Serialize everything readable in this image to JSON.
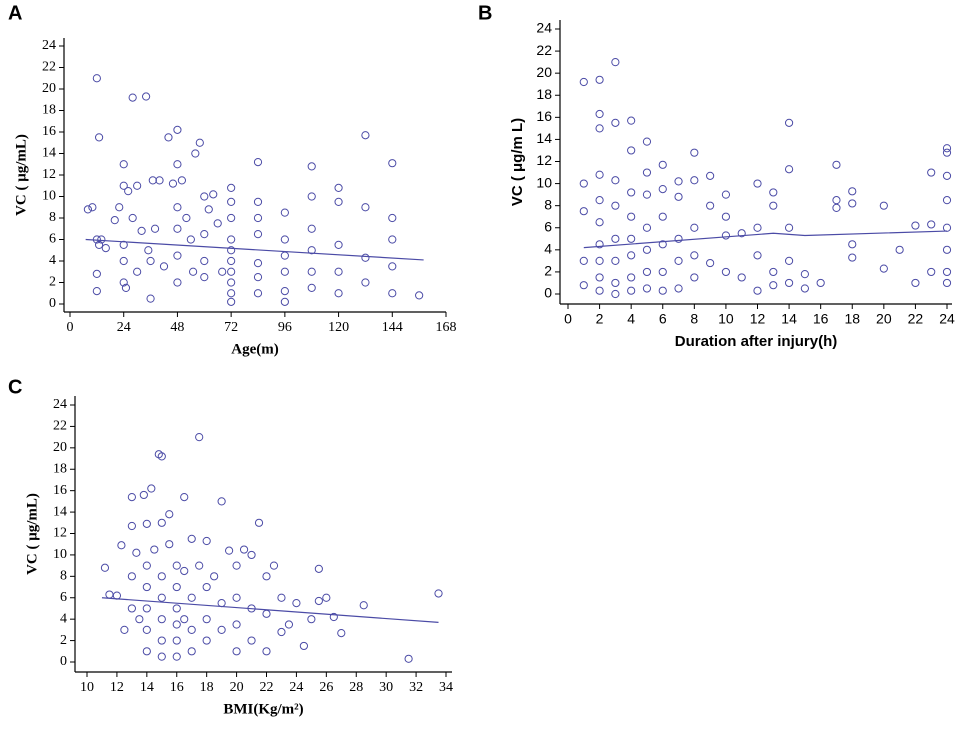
{
  "chart_data": [
    {
      "type": "scatter",
      "label": "A",
      "xlabel": "Age(m)",
      "ylabel": "VC ( μg/mL)",
      "color": "#4b4ba6",
      "xlim": [
        0,
        168
      ],
      "xticks": [
        0,
        24,
        48,
        72,
        96,
        120,
        144,
        168
      ],
      "ylim": [
        0,
        24
      ],
      "yticks": [
        0,
        2,
        4,
        6,
        8,
        10,
        12,
        14,
        16,
        18,
        20,
        22,
        24
      ],
      "x": [
        8,
        10,
        12,
        13,
        12,
        13,
        12,
        12,
        14,
        16,
        20,
        22,
        24,
        24,
        24,
        24,
        24,
        25,
        26,
        28,
        28,
        30,
        30,
        32,
        34,
        35,
        36,
        36,
        37,
        38,
        40,
        42,
        44,
        46,
        48,
        48,
        48,
        48,
        48,
        48,
        50,
        52,
        54,
        55,
        56,
        58,
        60,
        60,
        60,
        60,
        62,
        64,
        66,
        68,
        72,
        72,
        72,
        72,
        72,
        72,
        72,
        72,
        72,
        72,
        84,
        84,
        84,
        84,
        84,
        84,
        84,
        96,
        96,
        96,
        96,
        96,
        96,
        108,
        108,
        108,
        108,
        108,
        108,
        120,
        120,
        120,
        120,
        120,
        132,
        132,
        132,
        132,
        144,
        144,
        144,
        144,
        144,
        156
      ],
      "values": [
        8.8,
        9,
        21,
        15.5,
        6,
        5.5,
        2.8,
        1.2,
        6,
        5.2,
        7.8,
        9,
        13,
        11,
        5.5,
        4,
        2,
        1.5,
        10.5,
        19.2,
        8,
        11,
        3,
        6.8,
        19.3,
        5,
        4,
        0.5,
        11.5,
        7,
        11.5,
        3.5,
        15.5,
        11.2,
        16.2,
        13,
        9,
        7,
        4.5,
        2,
        11.5,
        8,
        6,
        3,
        14,
        15,
        10,
        6.5,
        4,
        2.5,
        8.8,
        10.2,
        7.5,
        3,
        10.8,
        9.5,
        8,
        6,
        5,
        4,
        3,
        2,
        1,
        0.2,
        13.2,
        9.5,
        8,
        6.5,
        3.8,
        2.5,
        1,
        8.5,
        6,
        4.5,
        3,
        1.2,
        0.2,
        12.8,
        10,
        7,
        5,
        3,
        1.5,
        10.8,
        9.5,
        5.5,
        3,
        1,
        15.7,
        9,
        4.3,
        2,
        13.1,
        8,
        6,
        3.5,
        1,
        0.8
      ],
      "trend": {
        "x": [
          7,
          158
        ],
        "values": [
          6.0,
          4.1
        ]
      }
    },
    {
      "type": "scatter",
      "label": "B",
      "xlabel": "Duration after injury(h)",
      "ylabel": "VC ( μg/m L)",
      "color": "#4b4ba6",
      "xlim": [
        0,
        24
      ],
      "xticks": [
        0,
        2,
        4,
        6,
        8,
        10,
        12,
        14,
        16,
        18,
        20,
        22,
        24
      ],
      "ylim": [
        0,
        24
      ],
      "yticks": [
        0,
        2,
        4,
        6,
        8,
        10,
        12,
        14,
        16,
        18,
        20,
        22,
        24
      ],
      "x": [
        1,
        1,
        1,
        1,
        1,
        2,
        2,
        2,
        2,
        2,
        2,
        2,
        2,
        2,
        2,
        3,
        3,
        3,
        3,
        3,
        3,
        3,
        3,
        4,
        4,
        4,
        4,
        4,
        4,
        4,
        4,
        5,
        5,
        5,
        5,
        5,
        5,
        5,
        6,
        6,
        6,
        6,
        6,
        6,
        7,
        7,
        7,
        7,
        7,
        8,
        8,
        8,
        8,
        8,
        9,
        9,
        9,
        10,
        10,
        10,
        10,
        11,
        11,
        12,
        12,
        12,
        12,
        13,
        13,
        13,
        13,
        14,
        14,
        14,
        14,
        14,
        15,
        15,
        16,
        17,
        17,
        17,
        18,
        18,
        18,
        18,
        20,
        20,
        21,
        22,
        22,
        23,
        23,
        23,
        24,
        24,
        24,
        24,
        24,
        24,
        24,
        24
      ],
      "values": [
        19.2,
        10,
        7.5,
        3,
        0.8,
        19.4,
        16.3,
        15,
        10.8,
        8.5,
        6.5,
        4.5,
        3,
        1.5,
        0.3,
        21,
        15.5,
        10.3,
        8,
        5,
        3,
        1,
        0,
        15.7,
        13,
        9.2,
        7,
        5,
        3.5,
        1.5,
        0.3,
        13.8,
        11,
        9,
        6,
        4,
        2,
        0.5,
        11.7,
        9.5,
        7,
        4.5,
        2,
        0.3,
        10.2,
        8.8,
        5,
        3,
        0.5,
        12.8,
        10.3,
        6,
        3.5,
        1.5,
        10.7,
        8,
        2.8,
        9,
        7,
        5.3,
        2,
        1.5,
        5.5,
        10,
        6,
        3.5,
        0.3,
        9.2,
        8,
        2,
        0.8,
        15.5,
        11.3,
        6,
        3,
        1,
        1.8,
        0.5,
        1,
        11.7,
        8.5,
        7.8,
        9.3,
        8.2,
        4.5,
        3.3,
        8,
        2.3,
        4,
        6.2,
        1,
        11,
        6.3,
        2,
        13.2,
        12.8,
        10.7,
        8.5,
        6,
        4,
        2,
        1
      ],
      "trend": {
        "x": [
          1,
          13,
          15,
          24
        ],
        "values": [
          4.2,
          5.5,
          5.3,
          5.7
        ]
      }
    },
    {
      "type": "scatter",
      "label": "C",
      "xlabel": "BMI(Kg/m²)",
      "ylabel": "VC ( μg/mL)",
      "color": "#4b4ba6",
      "xlim": [
        10,
        34
      ],
      "xticks": [
        10,
        12,
        14,
        16,
        18,
        20,
        22,
        24,
        26,
        28,
        30,
        32,
        34
      ],
      "ylim": [
        0,
        24
      ],
      "yticks": [
        0,
        2,
        4,
        6,
        8,
        10,
        12,
        14,
        16,
        18,
        20,
        22,
        24
      ],
      "x": [
        11.2,
        11.5,
        12,
        12.3,
        12.5,
        13,
        13,
        13,
        13,
        13.3,
        13.5,
        13.8,
        14,
        14,
        14,
        14,
        14,
        14,
        14.3,
        14.5,
        14.8,
        15,
        15,
        15,
        15,
        15,
        15,
        15,
        15.5,
        15.5,
        16,
        16,
        16,
        16,
        16,
        16,
        16.5,
        16.5,
        16.5,
        17,
        17,
        17,
        17,
        17.5,
        17.5,
        18,
        18,
        18,
        18,
        18.5,
        19,
        19,
        19,
        19.5,
        20,
        20,
        20,
        20,
        20.5,
        21,
        21,
        21,
        21.5,
        22,
        22,
        22,
        22.5,
        23,
        23,
        23.5,
        24,
        24.5,
        25,
        25.5,
        25.5,
        26,
        26.5,
        27,
        28.5,
        31.5,
        33.5
      ],
      "values": [
        8.8,
        6.3,
        6.2,
        10.9,
        3,
        15.4,
        12.7,
        8,
        5,
        10.2,
        4,
        15.6,
        12.9,
        9,
        7,
        5,
        3,
        1,
        16.2,
        10.5,
        19.4,
        19.2,
        13,
        8,
        6,
        4,
        2,
        0.5,
        11,
        13.8,
        9,
        7,
        5,
        3.5,
        2,
        0.5,
        15.4,
        8.5,
        4,
        11.5,
        6,
        3,
        1,
        21,
        9,
        11.3,
        7,
        4,
        2,
        8,
        15,
        5.5,
        3,
        10.4,
        9,
        6,
        3.5,
        1,
        10.5,
        10,
        5,
        2,
        13,
        8,
        4.5,
        1,
        9,
        6,
        2.8,
        3.5,
        5.5,
        1.5,
        4,
        8.7,
        5.7,
        6,
        4.2,
        2.7,
        5.3,
        0.3,
        6.4
      ],
      "trend": {
        "x": [
          11,
          33.5
        ],
        "values": [
          6.0,
          3.7
        ]
      }
    }
  ]
}
